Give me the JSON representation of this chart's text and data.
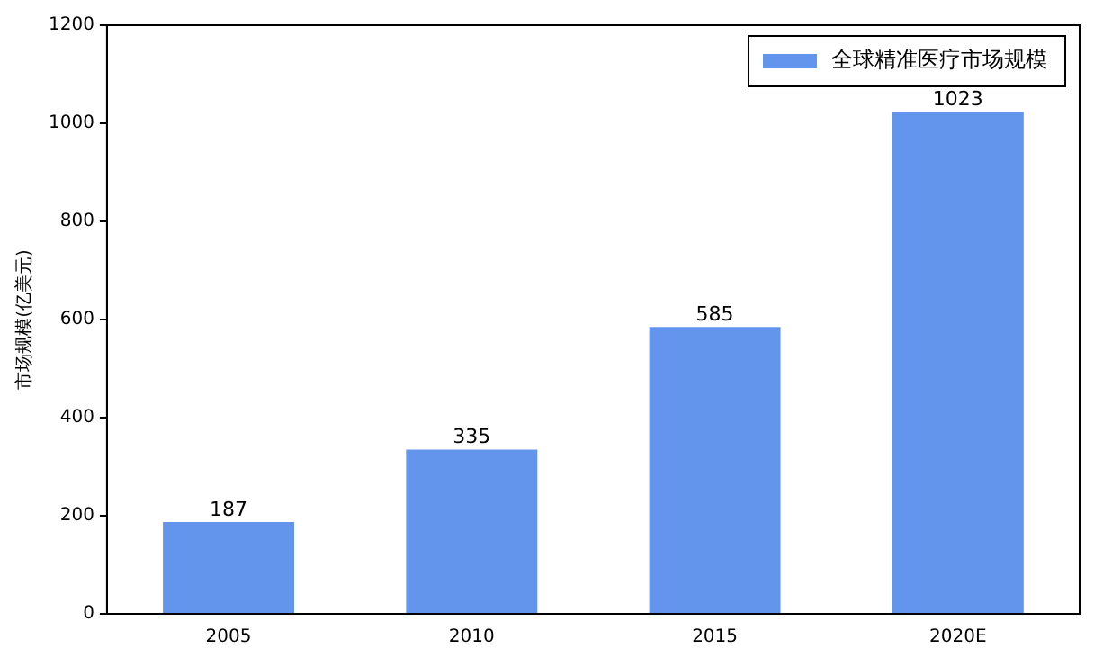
{
  "chart_data": {
    "type": "bar",
    "ylabel": "市场规模(亿美元)",
    "categories": [
      "2005",
      "2010",
      "2015",
      "2020E"
    ],
    "series": [
      {
        "name": "全球精准医疗市场规模",
        "color": "#6495ed",
        "values": [
          187,
          335,
          585,
          1023
        ]
      }
    ],
    "ylim": [
      0,
      1200
    ],
    "yticks": [
      0,
      200,
      400,
      600,
      800,
      1000,
      1200
    ],
    "data_labels": true,
    "grid": false,
    "legend": "top right"
  }
}
